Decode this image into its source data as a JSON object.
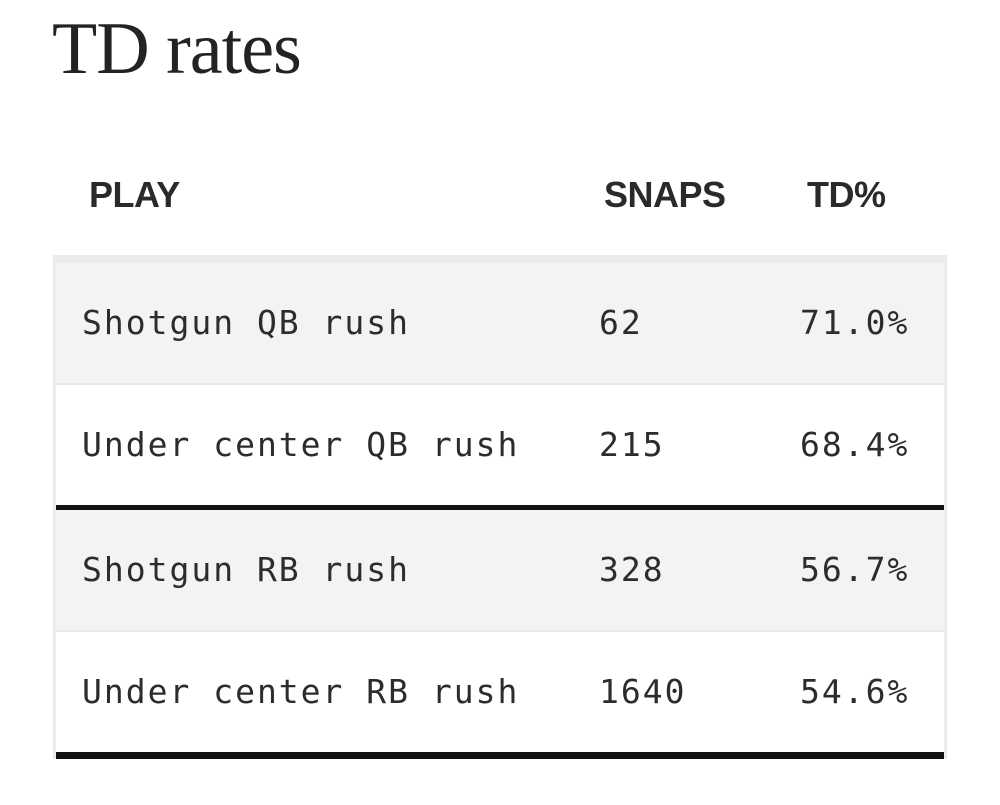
{
  "title": "TD rates",
  "table": {
    "headers": {
      "play": "PLAY",
      "snaps": "SNAPS",
      "td": "TD%"
    },
    "rows": [
      {
        "play": "Shotgun QB rush",
        "snaps": "62",
        "td": "71.0%"
      },
      {
        "play": "Under center QB rush",
        "snaps": "215",
        "td": "68.4%"
      },
      {
        "play": "Shotgun RB rush",
        "snaps": "328",
        "td": "56.7%"
      },
      {
        "play": "Under center RB rush",
        "snaps": "1640",
        "td": "54.6%"
      }
    ]
  },
  "colors": {
    "text": "#222222",
    "row_shade": "#f3f3f3",
    "divider": "#111111",
    "row_border": "#e8e8e8"
  }
}
